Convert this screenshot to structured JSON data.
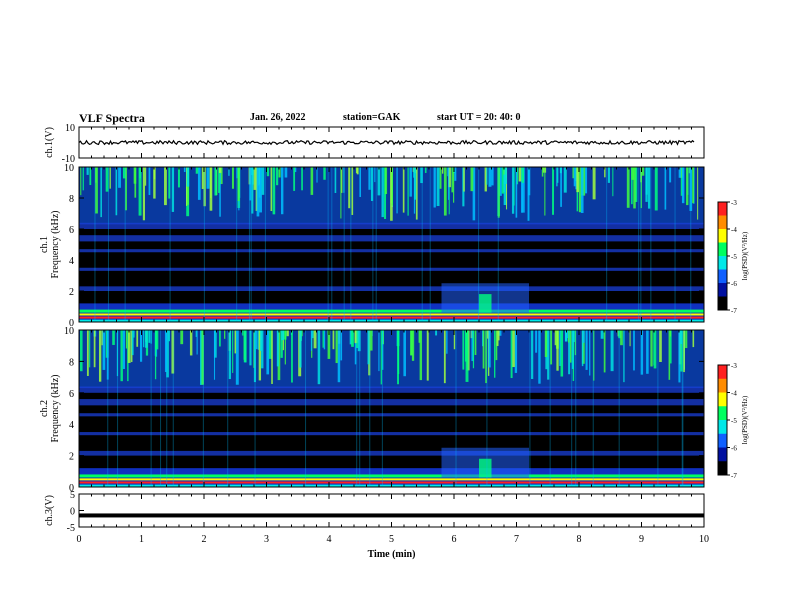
{
  "header": {
    "title": "VLF Spectra",
    "date": "Jan. 26, 2022",
    "station": "station=GAK",
    "start": "start  UT  =   20: 40: 0"
  },
  "colors": {
    "background": "#ffffff",
    "spectrogram_low": "#000000",
    "trace": "#000000"
  },
  "colorbar": {
    "ticks": [
      "-3",
      "-4",
      "-5",
      "-6",
      "-7"
    ],
    "label": "log(PSD)(V²/Hz)",
    "stops": [
      "#ff2020",
      "#ff8c00",
      "#ffff00",
      "#00ff60",
      "#00e8e8",
      "#1060ff",
      "#0010a0",
      "#000000"
    ]
  },
  "chart_data": [
    {
      "type": "line",
      "ylabel": "ch.1(V)",
      "yticks": [
        "10",
        "-10"
      ],
      "ylim": [
        -10,
        10
      ],
      "xlim": [
        0,
        10
      ],
      "description_level": "signal hovers near 0 V with small fluctuations",
      "mean": 0
    },
    {
      "type": "heatmap",
      "ylabel_prefix": "ch.1",
      "ylabel": "Frequency (kHz)",
      "yticks": [
        "0",
        "2",
        "4",
        "6",
        "8",
        "10"
      ],
      "ylim": [
        0,
        10
      ],
      "xlim": [
        0,
        10
      ],
      "colorbar_range": [
        -7,
        -3
      ]
    },
    {
      "type": "heatmap",
      "ylabel_prefix": "ch.2",
      "ylabel": "Frequency (kHz)",
      "yticks": [
        "0",
        "2",
        "4",
        "6",
        "8",
        "10"
      ],
      "ylim": [
        0,
        10
      ],
      "xlim": [
        0,
        10
      ],
      "colorbar_range": [
        -7,
        -3
      ]
    },
    {
      "type": "line",
      "ylabel": "ch.3(V)",
      "yticks": [
        "5",
        "0",
        "-5"
      ],
      "ylim": [
        -5,
        5
      ],
      "xlim": [
        0,
        10
      ],
      "mean": -1.5,
      "xlabel": "Time (min)",
      "xticks": [
        "0",
        "1",
        "2",
        "3",
        "4",
        "5",
        "6",
        "7",
        "8",
        "9",
        "10"
      ]
    }
  ]
}
